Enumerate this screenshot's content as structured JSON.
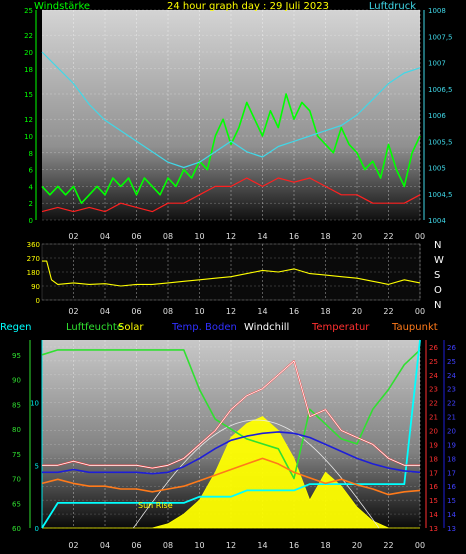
{
  "header": {
    "left_label": "Windstärke",
    "title": "24 hour graph day : 29 Juli 2023",
    "right_label": "Luftdruck"
  },
  "colors": {
    "wind": "#00ff00",
    "gust": "#ff2020",
    "pressure": "#40d8e8",
    "direction": "#ffff00",
    "humidity": "#30e030",
    "rain": "#00ffff",
    "solar": "#ffff00",
    "soil": "#1e1ed8",
    "windchill": "#ffffff",
    "temperature": "#ff3030",
    "dewpoint": "#ff7a1a"
  },
  "chart_data": [
    {
      "type": "line",
      "title": "24 hour graph day : 29 Juli 2023",
      "x_ticks": [
        "02",
        "04",
        "06",
        "08",
        "10",
        "12",
        "14",
        "16",
        "18",
        "20",
        "22",
        "00"
      ],
      "left_axis": {
        "label": "Windstärke",
        "ticks": [
          0,
          2,
          4,
          6,
          8,
          10,
          12,
          15,
          18,
          20,
          22,
          25
        ],
        "ylim": [
          0,
          25
        ]
      },
      "right_axis": {
        "label": "Luftdruck",
        "ticks": [
          "1004",
          "1004,5",
          "1005",
          "1005,5",
          "1006",
          "1006,5",
          "1007",
          "1007,5",
          "1008"
        ],
        "ylim": [
          1004,
          1008
        ]
      },
      "series": [
        {
          "name": "Windstärke",
          "color": "#00ff00",
          "axis": "left",
          "x": [
            0,
            0.5,
            1,
            1.5,
            2,
            2.5,
            3,
            3.5,
            4,
            4.5,
            5,
            5.5,
            6,
            6.5,
            7,
            7.5,
            8,
            8.5,
            9,
            9.5,
            10,
            10.5,
            11,
            11.5,
            12,
            12.5,
            13,
            13.5,
            14,
            14.5,
            15,
            15.5,
            16,
            16.5,
            17,
            17.5,
            18,
            18.5,
            19,
            19.5,
            20,
            20.5,
            21,
            21.5,
            22,
            22.5,
            23,
            23.5,
            24
          ],
          "y": [
            4,
            3,
            4,
            3,
            4,
            2,
            3,
            4,
            3,
            5,
            4,
            5,
            3,
            5,
            4,
            3,
            5,
            4,
            6,
            5,
            7,
            6,
            10,
            12,
            9,
            11,
            14,
            12,
            10,
            13,
            11,
            15,
            12,
            14,
            13,
            10,
            9,
            8,
            11,
            9,
            8,
            6,
            7,
            5,
            9,
            6,
            4,
            8,
            10
          ]
        },
        {
          "name": "Böen",
          "color": "#ff2020",
          "axis": "left",
          "x": [
            0,
            1,
            2,
            3,
            4,
            5,
            6,
            7,
            8,
            9,
            10,
            11,
            12,
            13,
            14,
            15,
            16,
            17,
            18,
            19,
            20,
            21,
            22,
            23,
            24
          ],
          "y": [
            1,
            1.5,
            1,
            1.5,
            1,
            2,
            1.5,
            1,
            2,
            2,
            3,
            4,
            4,
            5,
            4,
            5,
            4.5,
            5,
            4,
            3,
            3,
            2,
            2,
            2,
            3
          ]
        },
        {
          "name": "Luftdruck",
          "color": "#40d8e8",
          "axis": "right",
          "x": [
            0,
            1,
            2,
            3,
            4,
            5,
            6,
            7,
            8,
            9,
            10,
            11,
            12,
            13,
            14,
            15,
            16,
            17,
            18,
            19,
            20,
            21,
            22,
            23,
            24
          ],
          "y": [
            1007.2,
            1006.9,
            1006.6,
            1006.2,
            1005.9,
            1005.7,
            1005.5,
            1005.3,
            1005.1,
            1005,
            1005.1,
            1005.3,
            1005.5,
            1005.3,
            1005.2,
            1005.4,
            1005.5,
            1005.6,
            1005.7,
            1005.8,
            1006.0,
            1006.3,
            1006.6,
            1006.8,
            1006.9
          ]
        }
      ]
    },
    {
      "type": "line",
      "x_ticks": [
        "02",
        "04",
        "06",
        "08",
        "10",
        "12",
        "14",
        "16",
        "18",
        "20",
        "22",
        "00"
      ],
      "left_axis": {
        "ticks": [
          0,
          90,
          180,
          270,
          360
        ],
        "ylim": [
          0,
          360
        ]
      },
      "right_labels": [
        "N",
        "W",
        "S",
        "O",
        "N"
      ],
      "series": [
        {
          "name": "Windrichtung",
          "color": "#ffff00",
          "x": [
            0,
            0.3,
            0.6,
            1,
            2,
            3,
            4,
            5,
            6,
            7,
            8,
            9,
            10,
            11,
            12,
            13,
            14,
            15,
            16,
            17,
            18,
            19,
            20,
            21,
            22,
            23,
            24
          ],
          "y": [
            250,
            250,
            130,
            100,
            110,
            100,
            105,
            90,
            100,
            100,
            110,
            120,
            130,
            140,
            150,
            170,
            190,
            180,
            200,
            170,
            160,
            150,
            140,
            120,
            100,
            130,
            110
          ]
        }
      ]
    },
    {
      "type": "line",
      "x_ticks": [
        "02",
        "04",
        "06",
        "08",
        "10",
        "12",
        "14",
        "16",
        "18",
        "20",
        "22",
        "00"
      ],
      "legend": [
        "Regen",
        "Luftfeuchte",
        "Solar",
        "Temp. Boden",
        "Windchill",
        "Temperatur",
        "Taupunkt"
      ],
      "left_axis_humidity": {
        "ticks": [
          60,
          65,
          70,
          75,
          80,
          85,
          90,
          95
        ],
        "ylim": [
          60,
          98
        ]
      },
      "left_axis_rain": {
        "ticks": [
          0,
          5,
          10
        ],
        "ylim": [
          0,
          15
        ]
      },
      "right_axis_temp": {
        "ticks": [
          13,
          14,
          15,
          16,
          17,
          18,
          19,
          20,
          21,
          22,
          23,
          24,
          25,
          26
        ],
        "ylim": [
          13,
          26.5
        ]
      },
      "sunrise_label": "Sun Rise",
      "series": [
        {
          "name": "Luftfeuchte",
          "color": "#30e030",
          "axis": "humidity",
          "x": [
            0,
            1,
            2,
            3,
            4,
            5,
            6,
            7,
            8,
            9,
            10,
            11,
            12,
            13,
            14,
            15,
            16,
            17,
            18,
            19,
            20,
            21,
            22,
            23,
            24
          ],
          "y": [
            95,
            96,
            96,
            96,
            96,
            96,
            96,
            96,
            96,
            96,
            88,
            82,
            80,
            78,
            77,
            76,
            70,
            84,
            81,
            78,
            77,
            84,
            88,
            93,
            96
          ]
        },
        {
          "name": "Regen",
          "color": "#00ffff",
          "axis": "rain",
          "x": [
            0,
            1,
            2,
            3,
            4,
            5,
            6,
            7,
            8,
            9,
            10,
            11,
            12,
            13,
            14,
            15,
            16,
            17,
            18,
            19,
            20,
            21,
            22,
            23,
            24
          ],
          "y": [
            0,
            2,
            2,
            2,
            2,
            2,
            2,
            2,
            2,
            2,
            2.5,
            2.5,
            2.5,
            3,
            3,
            3,
            3,
            3.5,
            3.5,
            3.5,
            3.5,
            3.5,
            3.5,
            3.5,
            15
          ]
        },
        {
          "name": "Temperatur",
          "color": "#ff3030",
          "axis": "temp",
          "x": [
            0,
            1,
            2,
            3,
            4,
            5,
            6,
            7,
            8,
            9,
            10,
            11,
            12,
            13,
            14,
            15,
            16,
            17,
            18,
            19,
            20,
            21,
            22,
            23,
            24
          ],
          "y": [
            17.5,
            17.5,
            17.8,
            17.5,
            17.5,
            17.5,
            17.5,
            17.3,
            17.5,
            18,
            19,
            20,
            21.5,
            22.5,
            23,
            24,
            25,
            21,
            21.5,
            20,
            19.5,
            19,
            18,
            17.5,
            17.5
          ]
        },
        {
          "name": "Temp. Boden",
          "color": "#1e1ed8",
          "axis": "temp",
          "x": [
            0,
            1,
            2,
            3,
            4,
            5,
            6,
            7,
            8,
            9,
            10,
            11,
            12,
            13,
            14,
            15,
            16,
            17,
            18,
            19,
            20,
            21,
            22,
            23,
            24
          ],
          "y": [
            17,
            17,
            17.2,
            17,
            17,
            17,
            17,
            16.9,
            17,
            17.4,
            18,
            18.7,
            19.3,
            19.6,
            19.8,
            19.9,
            19.8,
            19.5,
            19,
            18.5,
            18,
            17.6,
            17.3,
            17.1,
            17
          ]
        },
        {
          "name": "Taupunkt",
          "color": "#ff7a1a",
          "axis": "temp",
          "x": [
            0,
            1,
            2,
            3,
            4,
            5,
            6,
            7,
            8,
            9,
            10,
            11,
            12,
            13,
            14,
            15,
            16,
            17,
            18,
            19,
            20,
            21,
            22,
            23,
            24
          ],
          "y": [
            16.2,
            16.5,
            16.2,
            16,
            16,
            15.8,
            15.8,
            15.6,
            15.8,
            16,
            16.4,
            16.8,
            17.2,
            17.6,
            18,
            17.6,
            17,
            16.6,
            16.2,
            16.5,
            16.1,
            15.8,
            15.4,
            15.6,
            15.7
          ]
        },
        {
          "name": "Windchill",
          "color": "#ffffff",
          "axis": "temp",
          "x": [
            0,
            1,
            2,
            3,
            4,
            5,
            6,
            7,
            8,
            9,
            10,
            11,
            12,
            13,
            14,
            15,
            16,
            17,
            18,
            19,
            20,
            21,
            22,
            23,
            24
          ],
          "y": [
            17.5,
            17.5,
            17.8,
            17.5,
            17.5,
            17.5,
            17.5,
            17.3,
            17.5,
            18,
            19,
            20,
            21.5,
            22.5,
            23,
            24,
            25,
            21,
            21.5,
            20,
            19.5,
            19,
            18,
            17.5,
            17.5
          ]
        },
        {
          "name": "Solar",
          "color": "#ffff00",
          "axis": "temp",
          "x": [
            0,
            5,
            6,
            7,
            8,
            9,
            10,
            11,
            12,
            13,
            14,
            15,
            16,
            17,
            18,
            19,
            20,
            21,
            22,
            23,
            24
          ],
          "y": [
            13,
            13,
            13,
            13,
            13.3,
            14,
            15,
            17,
            19.5,
            20.5,
            21,
            20,
            18,
            15,
            17,
            16,
            14.5,
            13.5,
            13,
            13,
            13
          ]
        }
      ]
    }
  ]
}
